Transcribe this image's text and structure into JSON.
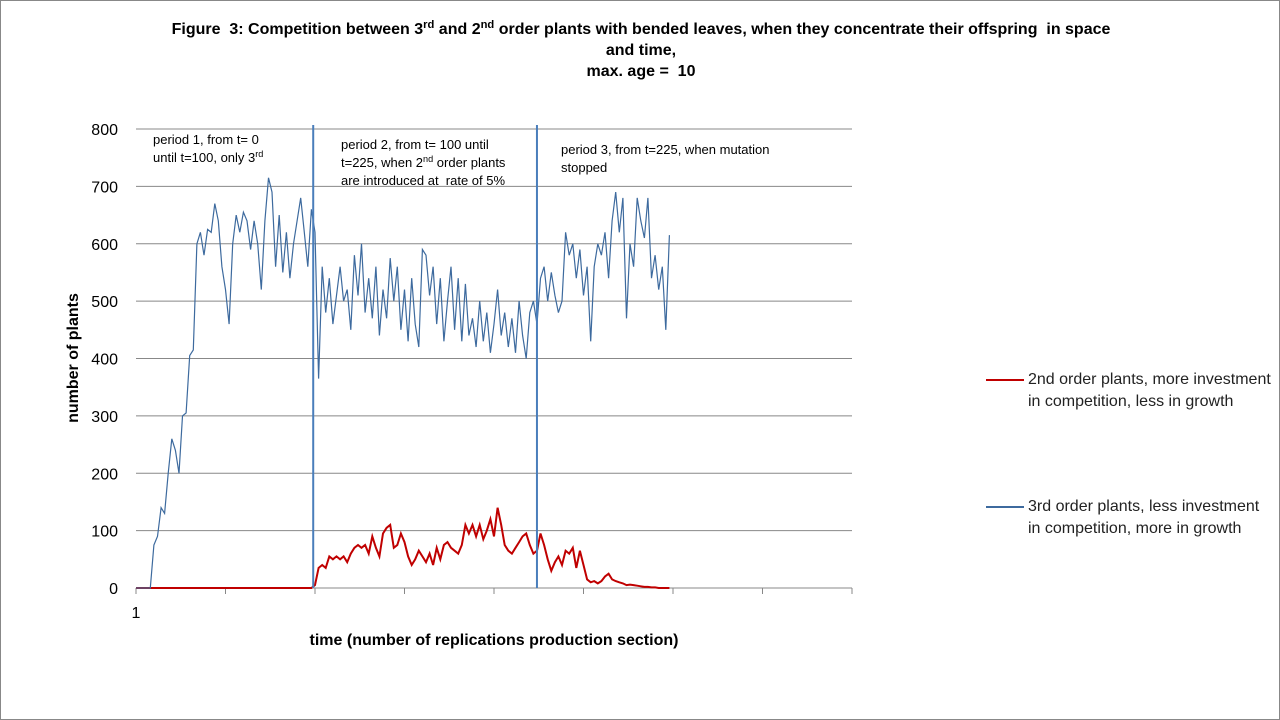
{
  "chart_data": {
    "type": "line",
    "title": [
      [
        {
          "text": "Figure  3: Competition between 3"
        },
        {
          "text": "rd",
          "sup": true
        },
        {
          "text": " and 2"
        },
        {
          "text": "nd",
          "sup": true
        },
        {
          "text": " order plants with bended leaves, when they concentrate their offspring  in space"
        }
      ],
      [
        {
          "text": "and time,"
        }
      ],
      [
        {
          "text": "max. age =  10"
        }
      ]
    ],
    "xlabel": "time (number of replications production section)",
    "ylabel": "number of plants",
    "xlim": [
      1,
      401
    ],
    "xticks": [
      1
    ],
    "xminor_ticks": [
      51,
      101,
      151,
      201,
      251,
      301,
      351,
      401
    ],
    "ylim": [
      0,
      800
    ],
    "yticks": [
      0,
      100,
      200,
      300,
      400,
      500,
      600,
      700,
      800
    ],
    "grid": true,
    "period_lines": [
      100,
      225
    ],
    "period_color": "#4a7ebb",
    "annotations": [
      [
        [
          {
            "text": "period 1, from t= 0"
          }
        ],
        [
          {
            "text": "until t=100, only 3"
          },
          {
            "text": "rd",
            "sup": true
          }
        ]
      ],
      [
        [
          {
            "text": "period 2, from t= 100 until"
          }
        ],
        [
          {
            "text": "t=225, when 2"
          },
          {
            "text": "nd",
            "sup": true
          },
          {
            "text": " order plants"
          }
        ],
        [
          {
            "text": "are introduced at  rate of 5%"
          }
        ]
      ],
      [
        [
          {
            "text": "period 3, from t=225, when mutation"
          }
        ],
        [
          {
            "text": "stopped"
          }
        ]
      ]
    ],
    "legend": "right",
    "x": [
      1,
      3,
      5,
      7,
      9,
      11,
      13,
      15,
      17,
      19,
      21,
      23,
      25,
      27,
      29,
      31,
      33,
      35,
      37,
      39,
      41,
      43,
      45,
      47,
      49,
      51,
      53,
      55,
      57,
      59,
      61,
      63,
      65,
      67,
      69,
      71,
      73,
      75,
      77,
      79,
      81,
      83,
      85,
      87,
      89,
      91,
      93,
      95,
      97,
      99,
      101,
      103,
      105,
      107,
      109,
      111,
      113,
      115,
      117,
      119,
      121,
      123,
      125,
      127,
      129,
      131,
      133,
      135,
      137,
      139,
      141,
      143,
      145,
      147,
      149,
      151,
      153,
      155,
      157,
      159,
      161,
      163,
      165,
      167,
      169,
      171,
      173,
      175,
      177,
      179,
      181,
      183,
      185,
      187,
      189,
      191,
      193,
      195,
      197,
      199,
      201,
      203,
      205,
      207,
      209,
      211,
      213,
      215,
      217,
      219,
      221,
      223,
      225,
      227,
      229,
      231,
      233,
      235,
      237,
      239,
      241,
      243,
      245,
      247,
      249,
      251,
      253,
      255,
      257,
      259,
      261,
      263,
      265,
      267,
      269,
      271,
      273,
      275,
      277,
      279,
      281,
      283,
      285,
      287,
      289,
      291,
      293,
      295,
      297,
      299
    ],
    "series": [
      {
        "name": "2nd order plants, more investment in competition, less in growth",
        "color": "#c00000",
        "values": [
          0,
          0,
          0,
          0,
          0,
          0,
          0,
          0,
          0,
          0,
          0,
          0,
          0,
          0,
          0,
          0,
          0,
          0,
          0,
          0,
          0,
          0,
          0,
          0,
          0,
          0,
          0,
          0,
          0,
          0,
          0,
          0,
          0,
          0,
          0,
          0,
          0,
          0,
          0,
          0,
          0,
          0,
          0,
          0,
          0,
          0,
          0,
          0,
          0,
          0,
          5,
          35,
          40,
          35,
          55,
          50,
          55,
          50,
          55,
          45,
          60,
          70,
          75,
          70,
          75,
          60,
          90,
          70,
          55,
          95,
          105,
          110,
          70,
          75,
          95,
          80,
          55,
          40,
          50,
          65,
          55,
          45,
          60,
          40,
          70,
          50,
          75,
          80,
          70,
          65,
          60,
          75,
          110,
          95,
          110,
          90,
          110,
          85,
          100,
          120,
          90,
          140,
          110,
          75,
          65,
          60,
          70,
          80,
          90,
          95,
          75,
          60,
          65,
          95,
          75,
          50,
          30,
          45,
          55,
          40,
          65,
          60,
          70,
          35,
          65,
          40,
          15,
          10,
          12,
          8,
          12,
          20,
          25,
          15,
          12,
          10,
          8,
          5,
          6,
          5,
          4,
          3,
          2,
          2,
          1,
          1,
          0,
          0,
          0,
          0
        ]
      },
      {
        "name": "3rd order plants, less investment in competition, more in growth",
        "color": "#3d6a9e",
        "values": [
          0,
          0,
          0,
          0,
          0,
          75,
          90,
          140,
          130,
          200,
          260,
          240,
          200,
          300,
          305,
          405,
          415,
          600,
          620,
          580,
          625,
          620,
          670,
          640,
          560,
          520,
          460,
          600,
          650,
          620,
          655,
          640,
          590,
          640,
          600,
          520,
          640,
          715,
          690,
          560,
          650,
          550,
          620,
          540,
          600,
          640,
          680,
          620,
          560,
          660,
          620,
          365,
          560,
          480,
          540,
          460,
          510,
          560,
          500,
          520,
          450,
          580,
          510,
          600,
          480,
          540,
          470,
          560,
          440,
          520,
          470,
          575,
          500,
          560,
          450,
          520,
          430,
          540,
          460,
          420,
          590,
          580,
          510,
          560,
          460,
          540,
          430,
          500,
          560,
          450,
          540,
          430,
          530,
          440,
          470,
          420,
          500,
          430,
          480,
          410,
          460,
          520,
          440,
          480,
          420,
          470,
          410,
          500,
          440,
          400,
          480,
          500,
          460,
          540,
          560,
          500,
          550,
          510,
          480,
          500,
          620,
          580,
          600,
          540,
          590,
          510,
          560,
          430,
          560,
          600,
          580,
          620,
          540,
          640,
          690,
          620,
          680,
          470,
          600,
          560,
          680,
          640,
          610,
          680,
          540,
          580,
          520,
          560,
          450,
          615
        ]
      }
    ]
  }
}
